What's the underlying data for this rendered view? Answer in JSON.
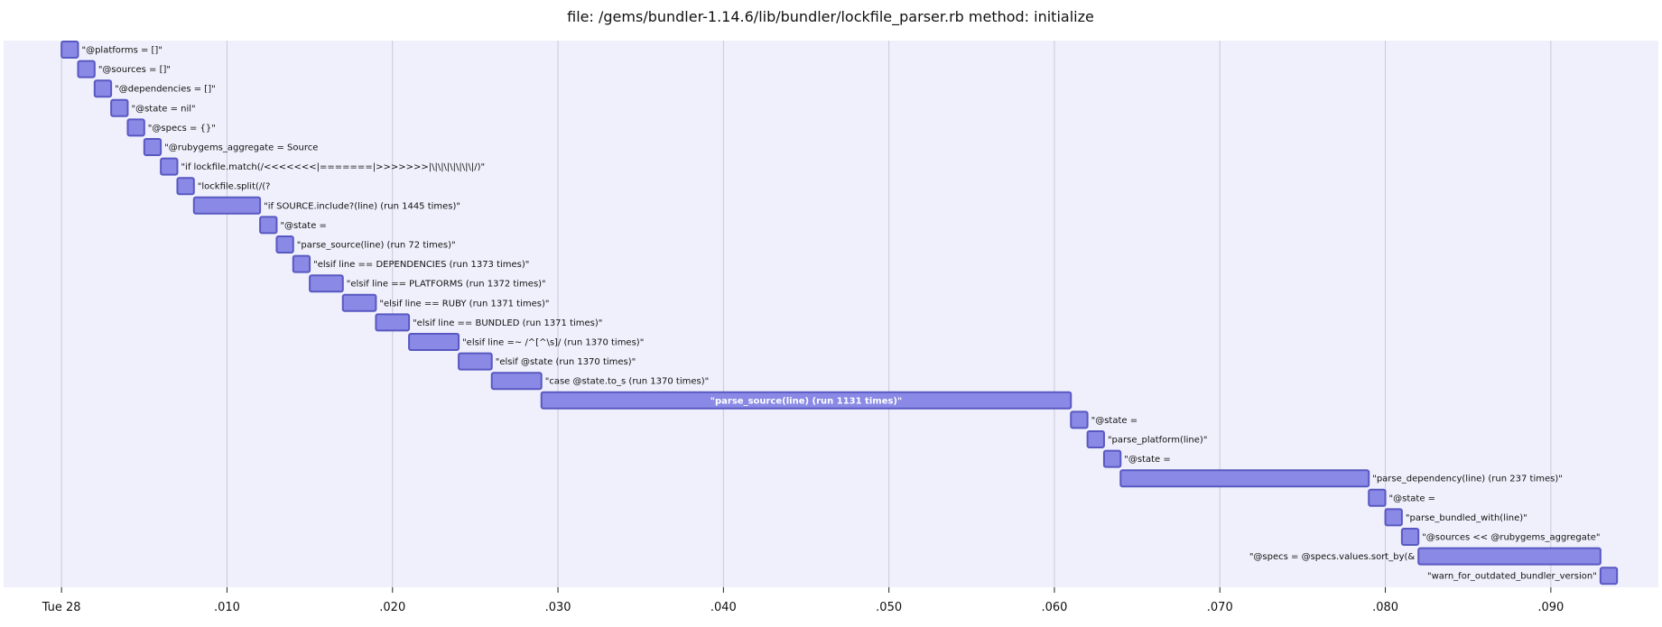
{
  "chart_data": {
    "type": "gantt",
    "title": "file: /gems/bundler-1.14.6/lib/bundler/lockfile_parser.rb method: initialize",
    "x_unit": "seconds",
    "xlim": [
      -0.0035,
      0.0965
    ],
    "ticks": [
      {
        "value": 0.0,
        "label": "Tue 28"
      },
      {
        "value": 0.01,
        "label": ".010"
      },
      {
        "value": 0.02,
        "label": ".020"
      },
      {
        "value": 0.03,
        "label": ".030"
      },
      {
        "value": 0.04,
        "label": ".040"
      },
      {
        "value": 0.05,
        "label": ".050"
      },
      {
        "value": 0.06,
        "label": ".060"
      },
      {
        "value": 0.07,
        "label": ".070"
      },
      {
        "value": 0.08,
        "label": ".080"
      },
      {
        "value": 0.09,
        "label": ".090"
      }
    ],
    "grid": true,
    "colors": {
      "bar": "#8a8ae6",
      "bar_border": "#5858c2",
      "plot_background": "#f0f0fc",
      "grid": "#c8c8dc"
    },
    "tasks": [
      {
        "label": "\"@platforms = []\"",
        "start": 0.0,
        "end": 0.001
      },
      {
        "label": "\"@sources = []\"",
        "start": 0.001,
        "end": 0.002
      },
      {
        "label": "\"@dependencies = []\"",
        "start": 0.002,
        "end": 0.003
      },
      {
        "label": "\"@state = nil\"",
        "start": 0.003,
        "end": 0.004
      },
      {
        "label": "\"@specs = {}\"",
        "start": 0.004,
        "end": 0.005
      },
      {
        "label": "\"@rubygems_aggregate = Source",
        "start": 0.005,
        "end": 0.006
      },
      {
        "label": "\"if lockfile.match(/<<<<<<<|=======|>>>>>>>|\\|\\|\\|\\|\\|\\|\\|/)\"",
        "start": 0.006,
        "end": 0.007
      },
      {
        "label": "\"lockfile.split(/(?",
        "start": 0.007,
        "end": 0.008
      },
      {
        "label": "\"if SOURCE.include?(line) (run 1445 times)\"",
        "start": 0.008,
        "end": 0.012
      },
      {
        "label": "\"@state =",
        "start": 0.012,
        "end": 0.013
      },
      {
        "label": "\"parse_source(line) (run 72 times)\"",
        "start": 0.013,
        "end": 0.014
      },
      {
        "label": "\"elsif line == DEPENDENCIES (run 1373 times)\"",
        "start": 0.014,
        "end": 0.015
      },
      {
        "label": "\"elsif line == PLATFORMS (run 1372 times)\"",
        "start": 0.015,
        "end": 0.017
      },
      {
        "label": "\"elsif line == RUBY (run 1371 times)\"",
        "start": 0.017,
        "end": 0.019
      },
      {
        "label": "\"elsif line == BUNDLED (run 1371 times)\"",
        "start": 0.019,
        "end": 0.021
      },
      {
        "label": "\"elsif line =~ /^[^\\s]/ (run 1370 times)\"",
        "start": 0.021,
        "end": 0.024
      },
      {
        "label": "\"elsif @state (run 1370 times)\"",
        "start": 0.024,
        "end": 0.026
      },
      {
        "label": "\"case @state.to_s (run 1370 times)\"",
        "start": 0.026,
        "end": 0.029
      },
      {
        "label": "\"parse_source(line) (run 1131 times)\"",
        "start": 0.029,
        "end": 0.061
      },
      {
        "label": "\"@state =",
        "start": 0.061,
        "end": 0.062
      },
      {
        "label": "\"parse_platform(line)\"",
        "start": 0.062,
        "end": 0.063
      },
      {
        "label": "\"@state =",
        "start": 0.063,
        "end": 0.064
      },
      {
        "label": "\"parse_dependency(line) (run 237 times)\"",
        "start": 0.064,
        "end": 0.079
      },
      {
        "label": "\"@state =",
        "start": 0.079,
        "end": 0.08
      },
      {
        "label": "\"parse_bundled_with(line)\"",
        "start": 0.08,
        "end": 0.081
      },
      {
        "label": "\"@sources << @rubygems_aggregate\"",
        "start": 0.081,
        "end": 0.082
      },
      {
        "label": "\"@specs = @specs.values.sort_by(&",
        "start": 0.082,
        "end": 0.093
      },
      {
        "label": "\"warn_for_outdated_bundler_version\"",
        "start": 0.093,
        "end": 0.094
      }
    ]
  }
}
